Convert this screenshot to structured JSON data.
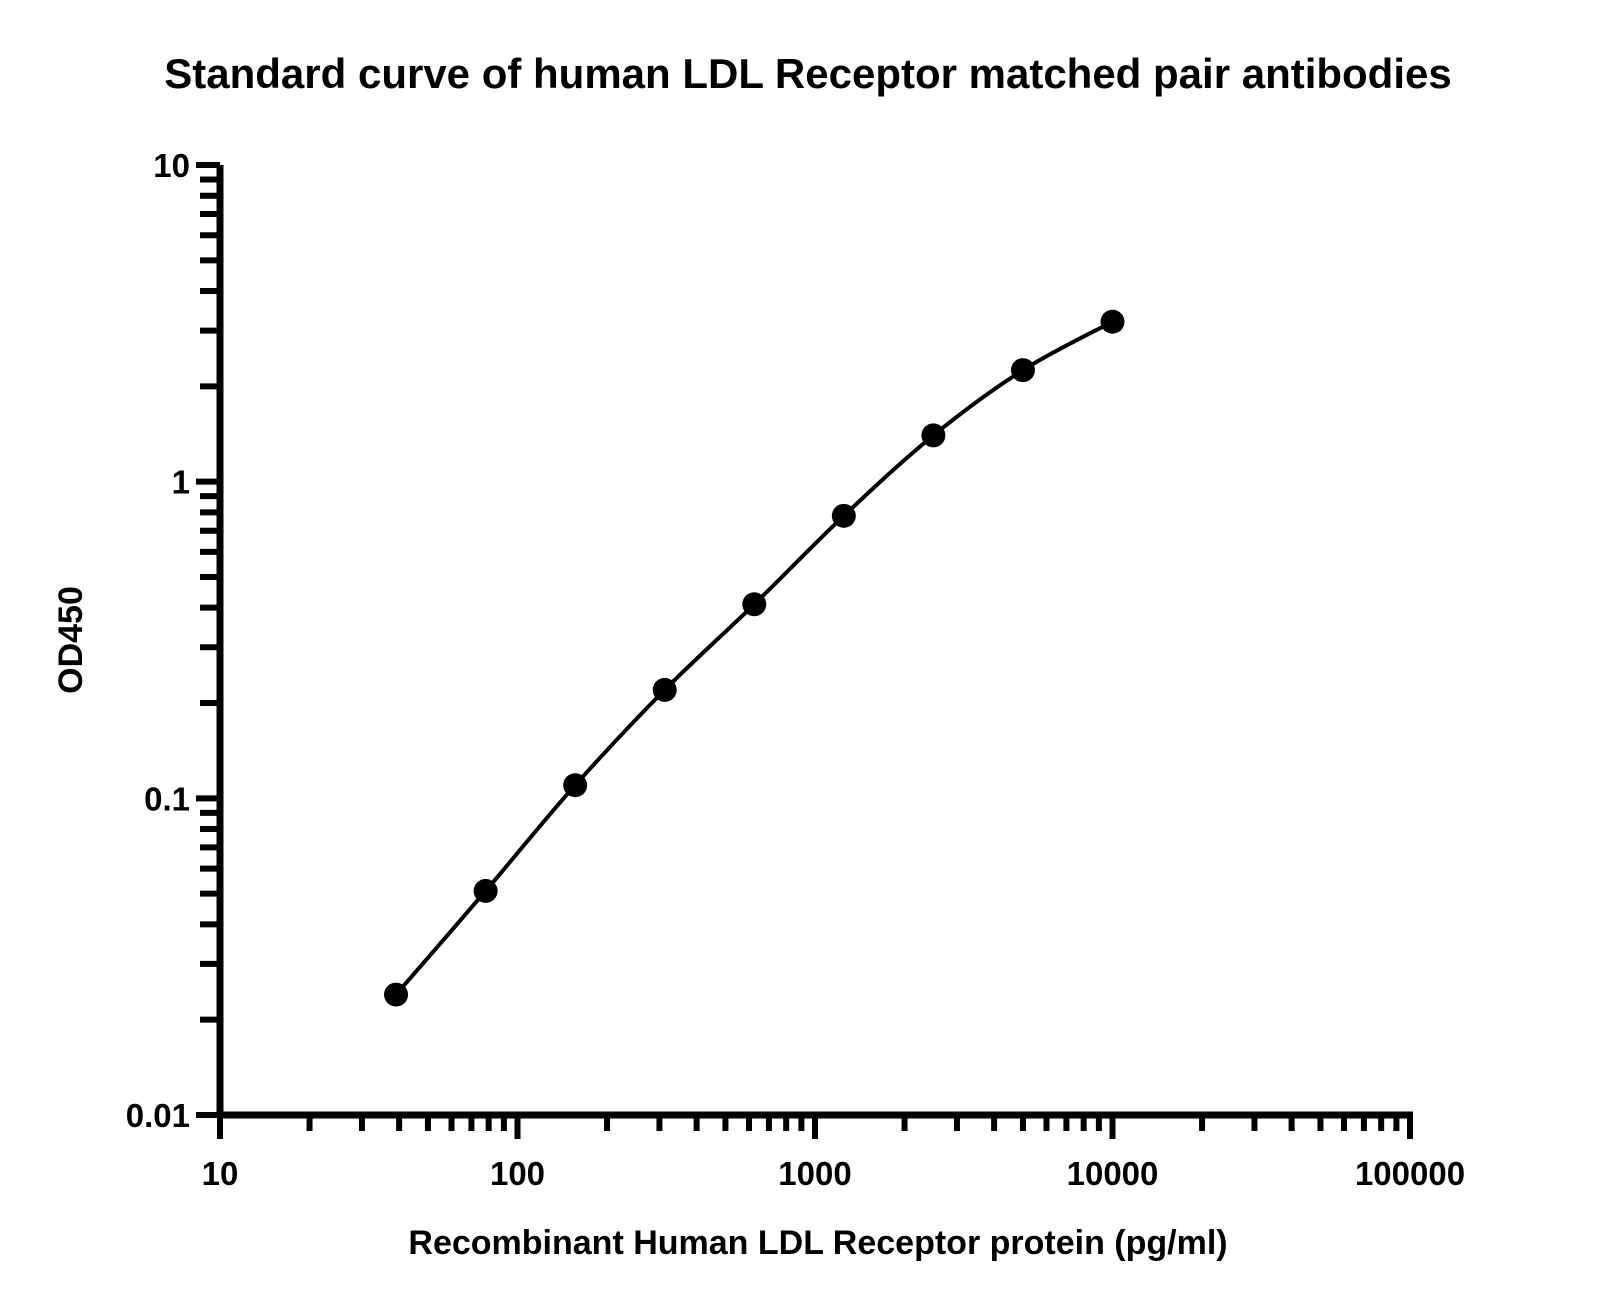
{
  "chart_data": {
    "type": "scatter",
    "title": "Standard curve of human LDL Receptor matched pair antibodies",
    "xlabel": "Recombinant Human LDL Receptor protein (pg/ml)",
    "ylabel": "OD450",
    "xscale": "log",
    "yscale": "log",
    "xlim": [
      10,
      100000
    ],
    "ylim": [
      0.01,
      10
    ],
    "xticks": [
      "10",
      "100",
      "1000",
      "10000",
      "100000"
    ],
    "yticks": [
      "0.01",
      "0.1",
      "1",
      "10"
    ],
    "grid": false,
    "legend": "none",
    "series": [
      {
        "x": [
          39.06,
          78.13,
          156.25,
          312.5,
          625,
          1250,
          2500,
          5000,
          10000
        ],
        "y": [
          0.024,
          0.051,
          0.11,
          0.22,
          0.41,
          0.78,
          1.4,
          2.25,
          3.2
        ],
        "marker": "circle",
        "color": "#000000",
        "fit_curve": true
      }
    ]
  }
}
